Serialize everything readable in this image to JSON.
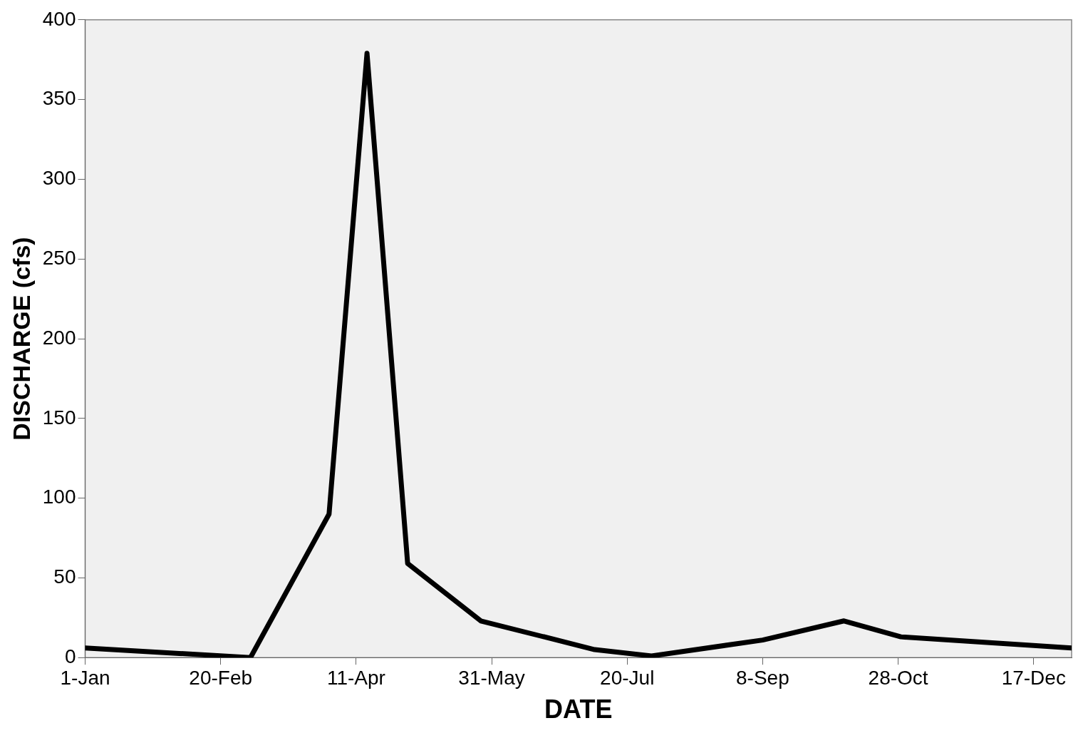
{
  "chart_data": {
    "type": "line",
    "xlabel": "DATE",
    "ylabel": "DISCHARGE (cfs)",
    "x": [
      "--01-01",
      "--03-03",
      "--04-01",
      "--04-15",
      "--04-30",
      "--05-27",
      "--07-08",
      "--07-29",
      "--09-08",
      "--10-08",
      "--10-29",
      "--12-31"
    ],
    "series": [
      {
        "color": "#000000",
        "values": [
          6,
          0,
          90,
          379,
          59,
          23,
          5,
          1,
          11,
          23,
          13,
          6
        ]
      }
    ],
    "xlim": [
      "--01-01",
      "--12-31"
    ],
    "xticks": [
      {
        "value": "--01-01",
        "label": "1-Jan"
      },
      {
        "value": "--02-20",
        "label": "20-Feb"
      },
      {
        "value": "--04-11",
        "label": "11-Apr"
      },
      {
        "value": "--05-31",
        "label": "31-May"
      },
      {
        "value": "--07-20",
        "label": "20-Jul"
      },
      {
        "value": "--09-08",
        "label": "8-Sep"
      },
      {
        "value": "--10-28",
        "label": "28-Oct"
      },
      {
        "value": "--12-17",
        "label": "17-Dec"
      }
    ],
    "ylim": [
      0,
      400
    ],
    "yticks": [
      0,
      50,
      100,
      150,
      200,
      250,
      300,
      350,
      400
    ],
    "grid": false,
    "legend": false,
    "marker": "none",
    "line_style": "solid"
  }
}
